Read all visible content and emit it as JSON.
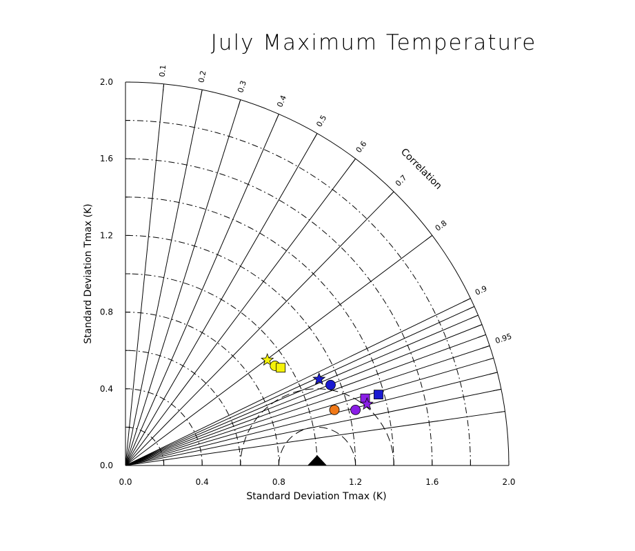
{
  "chart_data": {
    "type": "scatter",
    "subtype": "taylor-diagram",
    "title": "July Maximum Temperature",
    "xlabel": "Standard Deviation Tmax (K)",
    "ylabel": "Standard Deviation Tmax (K)",
    "arc_label": "Correlation",
    "xlim": [
      0,
      2.0
    ],
    "ylim": [
      0,
      2.0
    ],
    "x_ticks": [
      0,
      0.4,
      0.8,
      1.2,
      1.6,
      2.0
    ],
    "x_tick_labels": [
      "0.0",
      "0.4",
      "0.8",
      "1.2",
      "1.6",
      "2.0"
    ],
    "y_ticks": [
      0,
      0.4,
      0.8,
      1.2,
      1.6,
      2.0
    ],
    "y_tick_labels": [
      "0.0",
      "0.4",
      "0.8",
      "1.2",
      "1.6",
      "2.0"
    ],
    "correlation_lines": [
      0.1,
      0.2,
      0.3,
      0.4,
      0.5,
      0.6,
      0.7,
      0.8,
      0.9,
      0.91,
      0.92,
      0.93,
      0.94,
      0.95,
      0.96,
      0.97,
      0.98,
      0.99
    ],
    "correlation_labels": [
      {
        "value": 0.1,
        "text": "0.1"
      },
      {
        "value": 0.2,
        "text": "0.2"
      },
      {
        "value": 0.3,
        "text": "0.3"
      },
      {
        "value": 0.4,
        "text": "0.4"
      },
      {
        "value": 0.5,
        "text": "0.5"
      },
      {
        "value": 0.6,
        "text": "0.6"
      },
      {
        "value": 0.7,
        "text": "0.7"
      },
      {
        "value": 0.8,
        "text": "0.8"
      },
      {
        "value": 0.9,
        "text": "0.9"
      },
      {
        "value": 0.95,
        "text": "0.95"
      }
    ],
    "std_arcs": [
      0.2,
      0.4,
      0.6,
      0.8,
      1.0,
      1.2,
      1.4,
      1.6,
      1.8
    ],
    "rms_arcs": [
      0.2,
      0.4
    ],
    "reference": {
      "std": 1.0,
      "correlation": 1.0,
      "marker": "triangle",
      "color": "#000000"
    },
    "series": [
      {
        "marker": "star",
        "color": "#f5f20a",
        "x": 0.74,
        "y": 0.55
      },
      {
        "marker": "circle",
        "color": "#f5f20a",
        "x": 0.78,
        "y": 0.52
      },
      {
        "marker": "square",
        "color": "#f5f20a",
        "x": 0.81,
        "y": 0.51
      },
      {
        "marker": "star",
        "color": "#1a1ad0",
        "x": 1.01,
        "y": 0.45
      },
      {
        "marker": "circle",
        "color": "#1a1ad0",
        "x": 1.07,
        "y": 0.42
      },
      {
        "marker": "square",
        "color": "#1a1ad0",
        "x": 1.32,
        "y": 0.37
      },
      {
        "marker": "square",
        "color": "#8a1ee6",
        "x": 1.25,
        "y": 0.35
      },
      {
        "marker": "star",
        "color": "#8a1ee6",
        "x": 1.26,
        "y": 0.32
      },
      {
        "marker": "circle",
        "color": "#8a1ee6",
        "x": 1.2,
        "y": 0.29
      },
      {
        "marker": "circle",
        "color": "#f07818",
        "x": 1.09,
        "y": 0.29
      }
    ]
  }
}
